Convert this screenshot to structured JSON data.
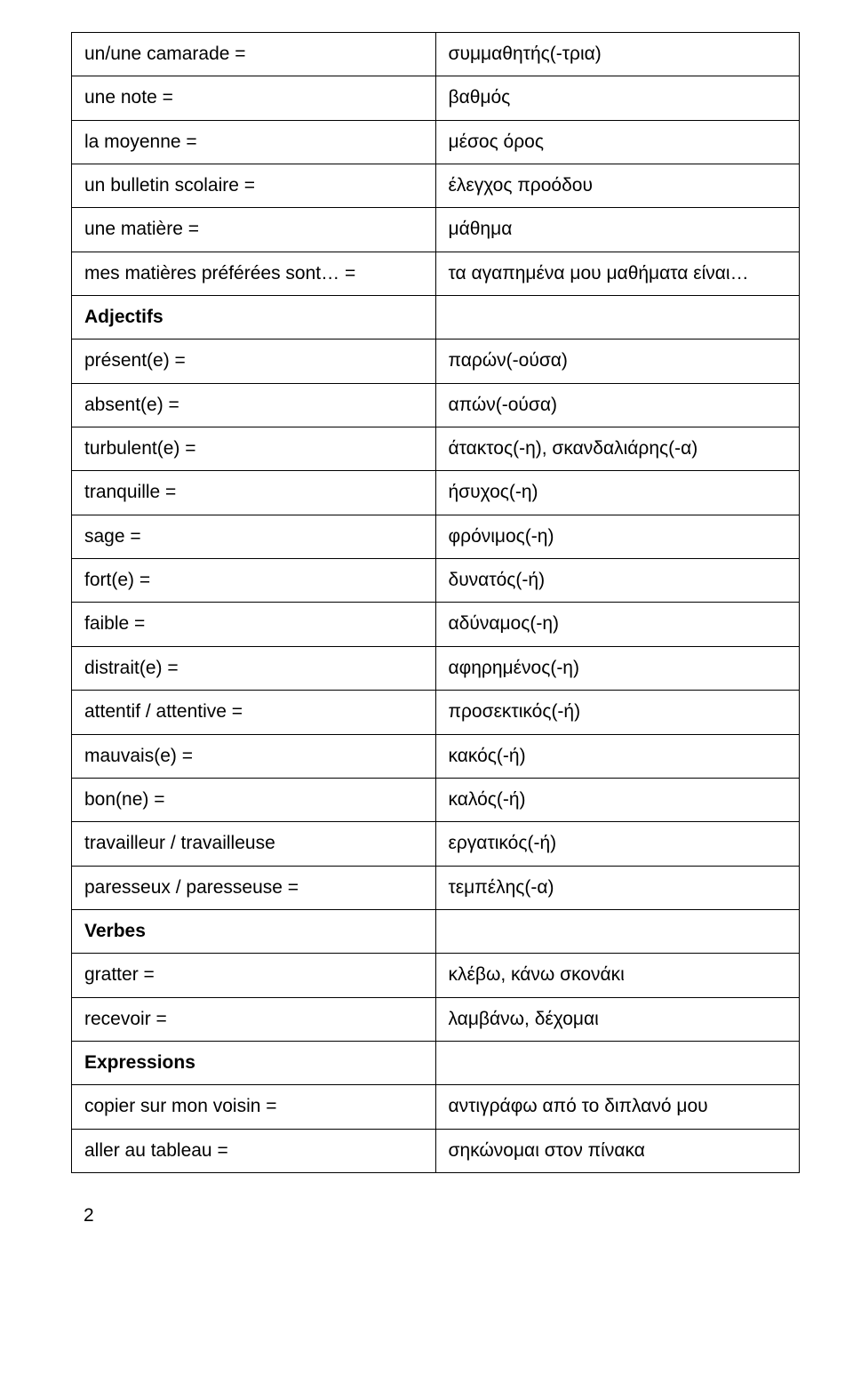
{
  "rows": [
    {
      "left": "un/une camarade =",
      "right": "συμμαθητής(-τρια)",
      "bold": false
    },
    {
      "left": "une note =",
      "right": "βαθμός",
      "bold": false
    },
    {
      "left": "la moyenne =",
      "right": "μέσος όρος",
      "bold": false
    },
    {
      "left": "un bulletin scolaire =",
      "right": "έλεγχος προόδου",
      "bold": false
    },
    {
      "left": "une matière =",
      "right": "μάθημα",
      "bold": false
    },
    {
      "left": "mes matières préférées sont… =",
      "right": "τα αγαπημένα μου μαθήματα είναι…",
      "bold": false
    },
    {
      "left": "Adjectifs",
      "right": "",
      "bold": true
    },
    {
      "left": "présent(e) =",
      "right": "παρών(-ούσα)",
      "bold": false
    },
    {
      "left": "absent(e) =",
      "right": "απών(-ούσα)",
      "bold": false
    },
    {
      "left": "turbulent(e) =",
      "right": "άτακτος(-η), σκανδαλιάρης(-α)",
      "bold": false
    },
    {
      "left": "tranquille =",
      "right": "ήσυχος(-η)",
      "bold": false
    },
    {
      "left": "sage =",
      "right": "φρόνιμος(-η)",
      "bold": false
    },
    {
      "left": "fort(e) =",
      "right": "δυνατός(-ή)",
      "bold": false
    },
    {
      "left": "faible =",
      "right": "αδύναμος(-η)",
      "bold": false
    },
    {
      "left": "distrait(e) =",
      "right": "αφηρημένος(-η)",
      "bold": false
    },
    {
      "left": "attentif / attentive =",
      "right": "προσεκτικός(-ή)",
      "bold": false
    },
    {
      "left": "mauvais(e) =",
      "right": "κακός(-ή)",
      "bold": false
    },
    {
      "left": "bon(ne) =",
      "right": "καλός(-ή)",
      "bold": false
    },
    {
      "left": "travailleur / travailleuse",
      "right": "εργατικός(-ή)",
      "bold": false
    },
    {
      "left": "paresseux / paresseuse =",
      "right": "τεμπέλης(-α)",
      "bold": false
    },
    {
      "left": "Verbes",
      "right": "",
      "bold": true
    },
    {
      "left": "gratter =",
      "right": "κλέβω, κάνω σκονάκι",
      "bold": false
    },
    {
      "left": "recevoir =",
      "right": "λαμβάνω, δέχομαι",
      "bold": false
    },
    {
      "left": "Expressions",
      "right": "",
      "bold": true
    },
    {
      "left": "copier sur mon voisin =",
      "right": "αντιγράφω από το διπλανό μου",
      "bold": false
    },
    {
      "left": "aller au tableau =",
      "right": "σηκώνομαι στον πίνακα",
      "bold": false
    }
  ],
  "pageNumber": "2"
}
